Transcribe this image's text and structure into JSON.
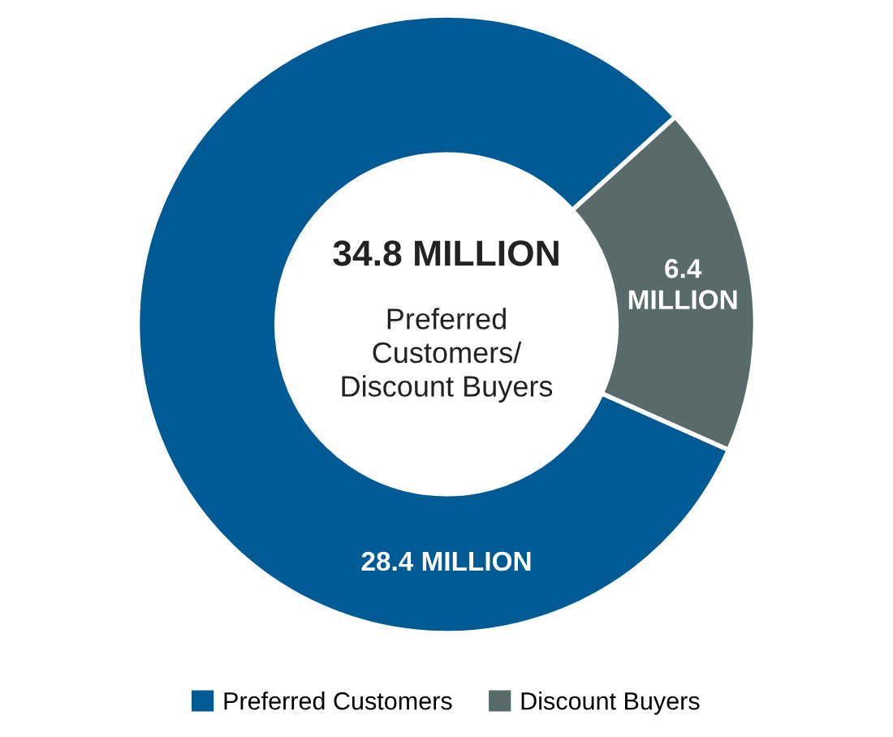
{
  "chart_data": {
    "type": "donut",
    "categories": [
      "Preferred Customers",
      "Discount Buyers"
    ],
    "values": [
      28.4,
      6.4
    ],
    "colors": [
      "#005a94",
      "#596a6a"
    ],
    "value_labels": [
      "28.4 MILLION",
      "6.4\nMILLION"
    ],
    "annotations": [
      "34.8 MILLION",
      "Preferred\nCustomers/\nDiscount Buyers"
    ],
    "legend": "bottom"
  }
}
